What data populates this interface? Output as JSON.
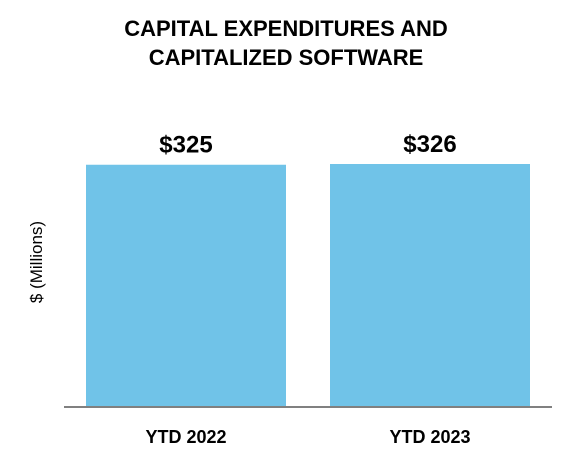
{
  "chart_data": {
    "type": "bar",
    "title_lines": [
      "CAPITAL EXPENDITURES AND",
      "CAPITALIZED SOFTWARE"
    ],
    "categories": [
      "YTD 2022",
      "YTD 2023"
    ],
    "values": [
      325,
      326
    ],
    "data_labels": [
      "$325",
      "$326"
    ],
    "xlabel": "",
    "ylabel": "$ (Millions)",
    "ylim": [
      0,
      326
    ],
    "grid": false,
    "legend": "none",
    "bar_color": "#70c3e8",
    "axis_color": "#808080"
  }
}
